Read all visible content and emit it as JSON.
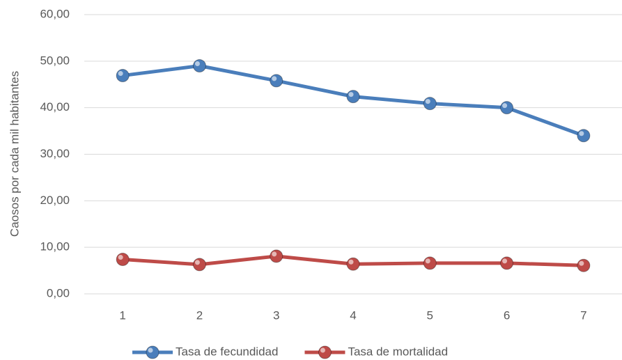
{
  "chart_data": {
    "type": "line",
    "y_label": "Caosos por cada mil habitantes",
    "categories": [
      "1",
      "2",
      "3",
      "4",
      "5",
      "6",
      "7"
    ],
    "series": [
      {
        "name": "Tasa de fecundidad",
        "color": "#4a7ebb",
        "values": [
          46.9,
          49.0,
          45.8,
          42.4,
          40.9,
          40.0,
          34.0
        ]
      },
      {
        "name": "Tasa de mortalidad",
        "color": "#be4b48",
        "values": [
          7.4,
          6.3,
          8.1,
          6.4,
          6.6,
          6.6,
          6.1
        ]
      }
    ],
    "ylim": [
      0,
      60
    ],
    "yticks": [
      {
        "value": 0,
        "label": "0,00"
      },
      {
        "value": 10,
        "label": "10,00"
      },
      {
        "value": 20,
        "label": "20,00"
      },
      {
        "value": 30,
        "label": "30,00"
      },
      {
        "value": 40,
        "label": "40,00"
      },
      {
        "value": 50,
        "label": "50,00"
      },
      {
        "value": 60,
        "label": "60,00"
      }
    ],
    "grid": true,
    "legend": "bottom"
  }
}
